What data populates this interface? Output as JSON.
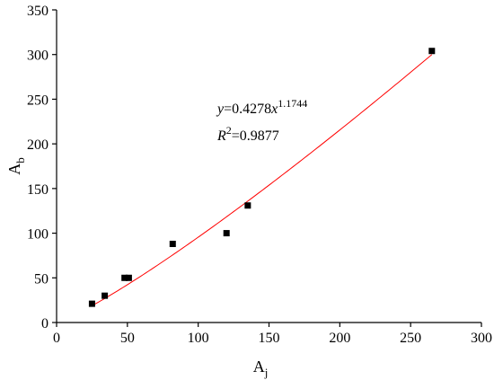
{
  "chart_data": {
    "type": "scatter",
    "xlabel": {
      "main": "A",
      "sub": "j"
    },
    "ylabel": {
      "main": "A",
      "sub": "b"
    },
    "xlim": [
      0,
      300
    ],
    "ylim": [
      0,
      350
    ],
    "x_ticks": [
      "0",
      "50",
      "100",
      "150",
      "200",
      "250",
      "300"
    ],
    "y_ticks": [
      "0",
      "50",
      "100",
      "150",
      "200",
      "250",
      "300",
      "350"
    ],
    "grid": false,
    "series": [
      {
        "points": [
          [
            25,
            21
          ],
          [
            34,
            30
          ],
          [
            48,
            50
          ],
          [
            51,
            50
          ],
          [
            82,
            88
          ],
          [
            120,
            100
          ],
          [
            135,
            131
          ],
          [
            265,
            304
          ]
        ],
        "marker_color": "#000000"
      }
    ],
    "fit": {
      "a": 0.4278,
      "b": 1.1744,
      "x_from": 25,
      "x_to": 265,
      "color": "#ff0000"
    },
    "annotations": {
      "eq_y": "y",
      "eq_mid": "=0.4278",
      "eq_x": "x",
      "eq_exp": "1.1744",
      "r2_r": "R",
      "r2_sup": "2",
      "r2_val": "=0.9877"
    }
  }
}
